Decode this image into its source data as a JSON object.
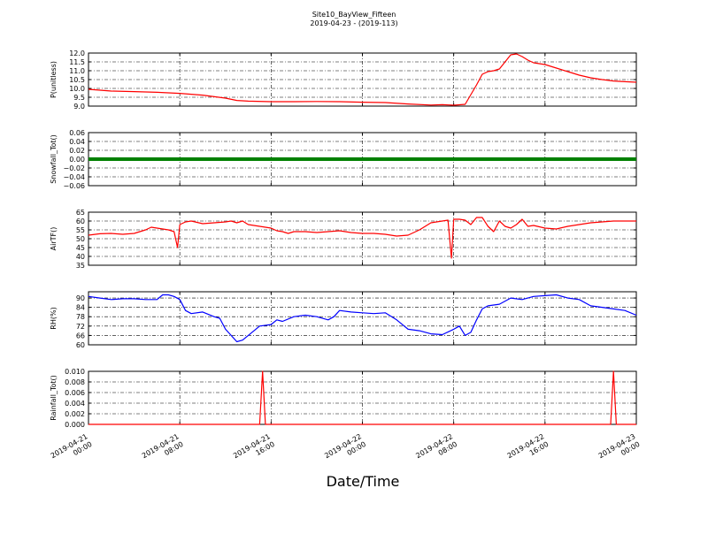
{
  "title": "Site10_BayView_Fifteen",
  "subtitle": "2019-04-23 - (2019-113)",
  "xlabel": "Date/Time",
  "x_ticks": [
    {
      "l1": "2019-04-21",
      "l2": "00:00"
    },
    {
      "l1": "2019-04-21",
      "l2": "08:00"
    },
    {
      "l1": "2019-04-21",
      "l2": "16:00"
    },
    {
      "l1": "2019-04-22",
      "l2": "00:00"
    },
    {
      "l1": "2019-04-22",
      "l2": "08:00"
    },
    {
      "l1": "2019-04-22",
      "l2": "16:00"
    },
    {
      "l1": "2019-04-23",
      "l2": "00:00"
    }
  ],
  "colors": {
    "red": "#ff0000",
    "green": "#008000",
    "blue": "#0000ff"
  },
  "chart_data": [
    {
      "type": "line",
      "ylabel": "P(unitless)",
      "color": "#ff0000",
      "ylim": [
        9.0,
        12.0
      ],
      "yticks": [
        9.0,
        9.5,
        10.0,
        10.5,
        11.0,
        11.5,
        12.0
      ],
      "ytick_labels": [
        "9.0",
        "9.5",
        "10.0",
        "10.5",
        "11.0",
        "11.5",
        "12.0"
      ],
      "x_hours": [
        0,
        2,
        4,
        6,
        8,
        10,
        12,
        13,
        14,
        16,
        18,
        20,
        22,
        24,
        26,
        28,
        30,
        31,
        32,
        33,
        34,
        34.5,
        35,
        35.5,
        36,
        37,
        37.5,
        38,
        38.5,
        39,
        40,
        41,
        42,
        43,
        44,
        45,
        46,
        47,
        48
      ],
      "values": [
        9.95,
        9.85,
        9.82,
        9.78,
        9.72,
        9.62,
        9.45,
        9.32,
        9.28,
        9.25,
        9.25,
        9.26,
        9.25,
        9.22,
        9.2,
        9.12,
        9.06,
        9.08,
        9.05,
        9.1,
        10.2,
        10.8,
        10.95,
        11.0,
        11.1,
        11.9,
        11.95,
        11.8,
        11.6,
        11.45,
        11.35,
        11.15,
        10.95,
        10.75,
        10.6,
        10.5,
        10.42,
        10.38,
        10.35
      ]
    },
    {
      "type": "line",
      "ylabel": "Snowfall_Tot()",
      "color": "#008000",
      "ylim": [
        -0.06,
        0.06
      ],
      "yticks": [
        -0.06,
        -0.04,
        -0.02,
        0.0,
        0.02,
        0.04,
        0.06
      ],
      "ytick_labels": [
        "−0.06",
        "−0.04",
        "−0.02",
        "0.00",
        "0.02",
        "0.04",
        "0.06"
      ],
      "x_hours": [
        0,
        48
      ],
      "values": [
        0.0,
        0.0
      ]
    },
    {
      "type": "line",
      "ylabel": "AirTF()",
      "color": "#ff0000",
      "ylim": [
        35,
        65
      ],
      "yticks": [
        35,
        40,
        45,
        50,
        55,
        60,
        65
      ],
      "ytick_labels": [
        "35",
        "40",
        "45",
        "50",
        "55",
        "60",
        "65"
      ],
      "x_hours": [
        0,
        1,
        2,
        3,
        4,
        5,
        5.5,
        6,
        7,
        7.5,
        7.8,
        8,
        8.5,
        9,
        10,
        11,
        12,
        12.5,
        13,
        13.5,
        14,
        15,
        16,
        16.5,
        17,
        17.5,
        18,
        19,
        20,
        21,
        22,
        23,
        24,
        25,
        26,
        27,
        28,
        29,
        30,
        31,
        31.5,
        31.8,
        32,
        32.5,
        33,
        33.5,
        34,
        34.5,
        35,
        35.5,
        36,
        36.5,
        37,
        37.5,
        38,
        38.5,
        39,
        40,
        41,
        42,
        43,
        44,
        45,
        46,
        47,
        48
      ],
      "values": [
        52,
        52.8,
        53,
        52.5,
        53,
        55,
        56.5,
        56,
        55,
        54,
        45,
        58,
        59.5,
        60,
        58.5,
        59,
        59.5,
        60,
        59,
        60,
        58,
        57,
        56,
        54.5,
        54,
        53,
        54,
        54,
        53.5,
        54,
        54.5,
        53.5,
        53,
        53,
        52.5,
        51.5,
        52,
        55,
        59,
        60,
        60.5,
        39,
        61,
        61,
        60.5,
        58,
        62,
        62,
        57,
        54,
        60,
        57,
        56,
        58,
        61,
        57,
        57.5,
        56,
        55.5,
        57,
        58,
        59,
        59.5,
        60,
        60,
        60
      ]
    },
    {
      "type": "line",
      "ylabel": "RH(%)",
      "color": "#0000ff",
      "ylim": [
        60,
        94
      ],
      "yticks": [
        60,
        66,
        72,
        78,
        84,
        90
      ],
      "ytick_labels": [
        "60",
        "66",
        "72",
        "78",
        "84",
        "90"
      ],
      "x_hours": [
        0,
        1,
        2,
        3,
        4,
        5,
        6,
        6.5,
        7,
        7.5,
        8,
        8.5,
        9,
        10,
        11,
        11.5,
        12,
        12.5,
        13,
        13.5,
        14,
        15,
        16,
        16.5,
        17,
        18,
        19,
        20,
        21,
        21.5,
        22,
        23,
        24,
        25,
        26,
        27,
        28,
        29,
        30,
        31,
        32,
        32.5,
        33,
        33.5,
        34,
        34.5,
        35,
        36,
        37,
        38,
        39,
        40,
        41,
        42,
        43,
        44,
        45,
        46,
        47,
        48
      ],
      "values": [
        91,
        90,
        89,
        89.5,
        89.5,
        89,
        89,
        92,
        92,
        91,
        89,
        82,
        80,
        81,
        78,
        77,
        70,
        66,
        62,
        63,
        66,
        72,
        73,
        76,
        75,
        78,
        79,
        78,
        76,
        78,
        82,
        81,
        80.5,
        80,
        80.5,
        76,
        70,
        69,
        67,
        66.5,
        70,
        72,
        66,
        68,
        76,
        83,
        85,
        86,
        90,
        89,
        91,
        91.5,
        92,
        90,
        89,
        85,
        84,
        83,
        82,
        79
      ]
    },
    {
      "type": "line",
      "ylabel": "Rainfall_Tot()",
      "color": "#ff0000",
      "ylim": [
        0,
        0.01
      ],
      "yticks": [
        0.0,
        0.002,
        0.004,
        0.006,
        0.008,
        0.01
      ],
      "ytick_labels": [
        "0.000",
        "0.002",
        "0.004",
        "0.006",
        "0.008",
        "0.010"
      ],
      "x_hours": [
        0,
        15,
        15.25,
        15.5,
        45.75,
        46,
        46.25,
        48
      ],
      "values": [
        0,
        0,
        0.01,
        0,
        0,
        0.01,
        0,
        0
      ]
    }
  ]
}
